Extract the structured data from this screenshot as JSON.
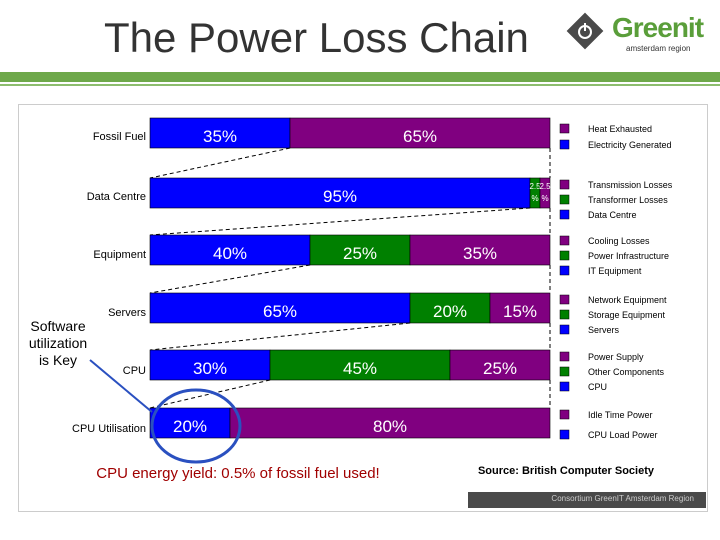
{
  "title": "The Power Loss Chain",
  "logo": {
    "word": "Greenit",
    "sub": "amsterdam region",
    "icon": "power-icon"
  },
  "side_note": [
    "Software",
    "utilization",
    "is Key"
  ],
  "colors": {
    "purple": "#800080",
    "blue": "#0000ff",
    "green": "#008000"
  },
  "chart_data": {
    "type": "bar",
    "orientation": "horizontal",
    "stacked": true,
    "categories": [
      "Fossil Fuel",
      "Data Centre",
      "Equipment",
      "Servers",
      "CPU",
      "CPU Utilisation"
    ],
    "rows": [
      {
        "category": "Fossil Fuel",
        "segments": [
          {
            "value": 35,
            "label": "35%",
            "color": "#0000ff"
          },
          {
            "value": 65,
            "label": "65%",
            "color": "#800080"
          }
        ]
      },
      {
        "category": "Data Centre",
        "segments": [
          {
            "value": 95,
            "label": "95%",
            "color": "#0000ff"
          },
          {
            "value": 2.5,
            "label": "2.5 %",
            "color": "#008000"
          },
          {
            "value": 2.5,
            "label": "2.5 %",
            "color": "#800080"
          }
        ]
      },
      {
        "category": "Equipment",
        "segments": [
          {
            "value": 40,
            "label": "40%",
            "color": "#0000ff"
          },
          {
            "value": 25,
            "label": "25%",
            "color": "#008000"
          },
          {
            "value": 35,
            "label": "35%",
            "color": "#800080"
          }
        ]
      },
      {
        "category": "Servers",
        "segments": [
          {
            "value": 65,
            "label": "65%",
            "color": "#0000ff"
          },
          {
            "value": 20,
            "label": "20%",
            "color": "#008000"
          },
          {
            "value": 15,
            "label": "15%",
            "color": "#800080"
          }
        ]
      },
      {
        "category": "CPU",
        "segments": [
          {
            "value": 30,
            "label": "30%",
            "color": "#0000ff"
          },
          {
            "value": 45,
            "label": "45%",
            "color": "#008000"
          },
          {
            "value": 25,
            "label": "25%",
            "color": "#800080"
          }
        ]
      },
      {
        "category": "CPU Utilisation",
        "segments": [
          {
            "value": 20,
            "label": "20%",
            "color": "#0000ff"
          },
          {
            "value": 80,
            "label": "80%",
            "color": "#800080"
          }
        ]
      }
    ],
    "legend": [
      {
        "items": [
          {
            "label": "Heat Exhausted",
            "color": "#800080"
          },
          {
            "label": "Electricity Generated",
            "color": "#0000ff"
          }
        ]
      },
      {
        "items": [
          {
            "label": "Transmission Losses",
            "color": "#800080"
          },
          {
            "label": "Transformer Losses",
            "color": "#008000"
          },
          {
            "label": "Data Centre",
            "color": "#0000ff"
          }
        ]
      },
      {
        "items": [
          {
            "label": "Cooling Losses",
            "color": "#800080"
          },
          {
            "label": "Power Infrastructure",
            "color": "#008000"
          },
          {
            "label": "IT Equipment",
            "color": "#0000ff"
          }
        ]
      },
      {
        "items": [
          {
            "label": "Network Equipment",
            "color": "#800080"
          },
          {
            "label": "Storage Equipment",
            "color": "#008000"
          },
          {
            "label": "Servers",
            "color": "#0000ff"
          }
        ]
      },
      {
        "items": [
          {
            "label": "Power Supply",
            "color": "#800080"
          },
          {
            "label": "Other Components",
            "color": "#008000"
          },
          {
            "label": "CPU",
            "color": "#0000ff"
          }
        ]
      },
      {
        "items": [
          {
            "label": "Idle Time Power",
            "color": "#800080"
          },
          {
            "label": "CPU Load Power",
            "color": "#0000ff"
          }
        ]
      }
    ],
    "annotation": "CPU energy yield: 0.5% of fossil fuel used!",
    "source": "Source: British Computer Society",
    "xlim": [
      0,
      100
    ]
  },
  "footer": "Consortium GreenIT Amsterdam Region"
}
